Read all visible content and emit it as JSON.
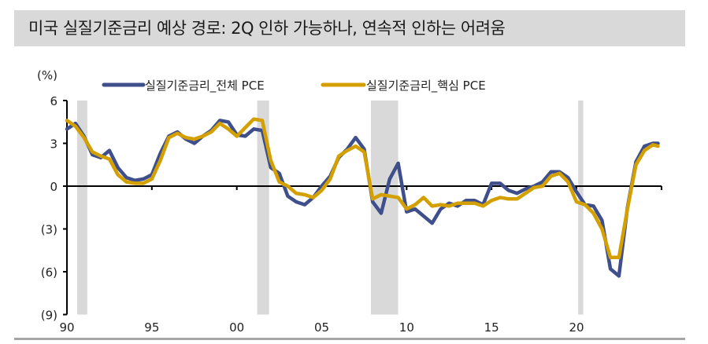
{
  "title": "미국 실질기준금리 예상 경로: 2Q 인하 가능하나, 연속적 인하는 어려움",
  "colors": {
    "title_bg": "#d9d9d9",
    "series_headline": "#3e4f8c",
    "series_core": "#d4a000",
    "recession_shade": "#d9d9d9",
    "axis": "#000000",
    "bottom_rule": "#a6a6a6"
  },
  "chart_data": {
    "type": "line",
    "title": "미국 실질기준금리 예상 경로: 2Q 인하 가능하나, 연속적 인하는 어려움",
    "xlabel": "",
    "ylabel": "(%)",
    "ylim": [
      -9,
      6
    ],
    "yticks": [
      6,
      3,
      0,
      -3,
      -6,
      -9
    ],
    "ytick_labels": [
      "6",
      "3",
      "0",
      "(3)",
      "(6)",
      "(9)"
    ],
    "xlim": [
      1990,
      2025
    ],
    "xticks": [
      1990,
      1995,
      2000,
      2005,
      2010,
      2015,
      2020
    ],
    "xtick_labels": [
      "90",
      "95",
      "00",
      "05",
      "10",
      "15",
      "20"
    ],
    "grid": false,
    "legend_position": "top",
    "recession_periods": [
      [
        1990.6,
        1991.2
      ],
      [
        2001.2,
        2001.9
      ],
      [
        2007.9,
        2009.5
      ],
      [
        2020.1,
        2020.4
      ]
    ],
    "x": [
      1990.0,
      1990.5,
      1991.0,
      1991.5,
      1992.0,
      1992.5,
      1993.0,
      1993.5,
      1994.0,
      1994.5,
      1995.0,
      1995.5,
      1996.0,
      1996.5,
      1997.0,
      1997.5,
      1998.0,
      1998.5,
      1999.0,
      1999.5,
      2000.0,
      2000.5,
      2001.0,
      2001.5,
      2002.0,
      2002.5,
      2003.0,
      2003.5,
      2004.0,
      2004.5,
      2005.0,
      2005.5,
      2006.0,
      2006.5,
      2007.0,
      2007.5,
      2008.0,
      2008.5,
      2009.0,
      2009.5,
      2010.0,
      2010.5,
      2011.0,
      2011.5,
      2012.0,
      2012.5,
      2013.0,
      2013.5,
      2014.0,
      2014.5,
      2015.0,
      2015.5,
      2016.0,
      2016.5,
      2017.0,
      2017.5,
      2018.0,
      2018.5,
      2019.0,
      2019.5,
      2020.0,
      2020.5,
      2021.0,
      2021.5,
      2022.0,
      2022.5,
      2023.0,
      2023.5,
      2024.0,
      2024.5,
      2024.8
    ],
    "series": [
      {
        "name": "실질기준금리_전체 PCE",
        "color": "#3e4f8c",
        "values": [
          4.0,
          4.4,
          3.5,
          2.2,
          2.0,
          2.5,
          1.3,
          0.6,
          0.4,
          0.5,
          0.8,
          2.3,
          3.5,
          3.8,
          3.3,
          3.0,
          3.5,
          3.9,
          4.6,
          4.5,
          3.6,
          3.5,
          4.0,
          3.9,
          1.3,
          0.9,
          -0.7,
          -1.1,
          -1.3,
          -0.8,
          0.0,
          0.7,
          2.0,
          2.6,
          3.4,
          2.6,
          -1.1,
          -1.9,
          0.5,
          1.6,
          -1.8,
          -1.6,
          -2.1,
          -2.6,
          -1.6,
          -1.2,
          -1.4,
          -1.0,
          -1.0,
          -1.3,
          0.2,
          0.2,
          -0.3,
          -0.5,
          -0.2,
          0.0,
          0.3,
          1.0,
          1.0,
          0.6,
          -0.4,
          -1.3,
          -1.4,
          -2.4,
          -5.8,
          -6.3,
          -1.5,
          1.7,
          2.8,
          3.0,
          3.0
        ]
      },
      {
        "name": "실질기준금리_핵심 PCE",
        "color": "#d4a000",
        "values": [
          4.6,
          4.2,
          3.4,
          2.4,
          2.1,
          1.9,
          0.8,
          0.3,
          0.2,
          0.2,
          0.5,
          1.8,
          3.4,
          3.7,
          3.4,
          3.3,
          3.5,
          3.8,
          4.4,
          4.0,
          3.5,
          4.1,
          4.7,
          4.6,
          1.8,
          0.3,
          0.0,
          -0.5,
          -0.6,
          -0.8,
          -0.3,
          0.5,
          2.1,
          2.5,
          2.8,
          2.4,
          -0.9,
          -0.6,
          -0.7,
          -0.8,
          -1.6,
          -1.3,
          -0.8,
          -1.4,
          -1.3,
          -1.4,
          -1.2,
          -1.2,
          -1.2,
          -1.4,
          -1.0,
          -0.8,
          -0.9,
          -0.9,
          -0.5,
          -0.1,
          0.0,
          0.7,
          0.9,
          0.3,
          -1.1,
          -1.3,
          -1.9,
          -3.0,
          -5.0,
          -5.0,
          -1.6,
          1.5,
          2.5,
          2.9,
          2.8
        ]
      }
    ]
  },
  "legend": {
    "items": [
      {
        "label": "실질기준금리_전체 PCE",
        "color": "#3e4f8c"
      },
      {
        "label": "실질기준금리_핵심 PCE",
        "color": "#d4a000"
      }
    ]
  },
  "axes": {
    "y_unit": "(%)",
    "y_labels": [
      "6",
      "3",
      "0",
      "(3)",
      "(6)",
      "(9)"
    ],
    "x_labels": [
      "90",
      "95",
      "00",
      "05",
      "10",
      "15",
      "20"
    ]
  }
}
